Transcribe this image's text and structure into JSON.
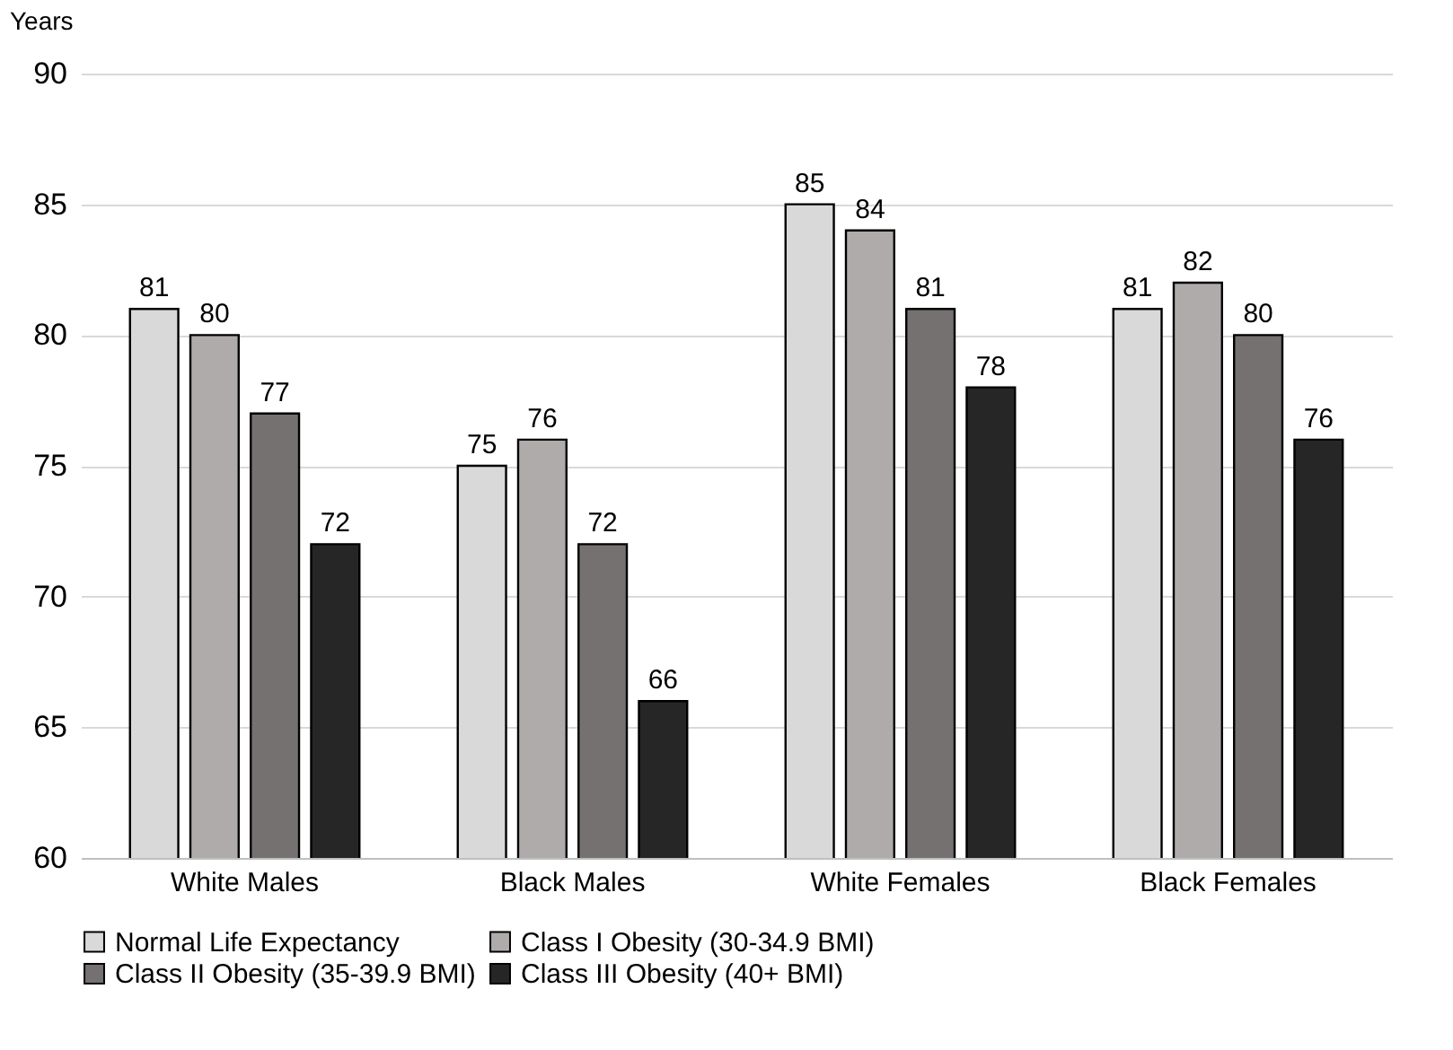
{
  "chart_data": {
    "type": "bar",
    "ylabel": "Years",
    "categories": [
      "White Males",
      "Black Males",
      "White Females",
      "Black Females"
    ],
    "series": [
      {
        "name": "Normal Life Expectancy",
        "color": "#d9d9d9",
        "values": [
          81,
          75,
          85,
          81
        ]
      },
      {
        "name": "Class I Obesity (30-34.9 BMI)",
        "color": "#afabab",
        "values": [
          80,
          76,
          84,
          82
        ]
      },
      {
        "name": "Class II Obesity (35-39.9 BMI)",
        "color": "#767171",
        "values": [
          77,
          72,
          81,
          80
        ]
      },
      {
        "name": "Class III Obesity (40+ BMI)",
        "color": "#262626",
        "values": [
          72,
          66,
          78,
          76
        ]
      }
    ],
    "ylim": [
      60,
      90
    ],
    "yticks": [
      60,
      65,
      70,
      75,
      80,
      85,
      90
    ],
    "grid": "y",
    "legend": "bottom",
    "data_labels": true
  }
}
